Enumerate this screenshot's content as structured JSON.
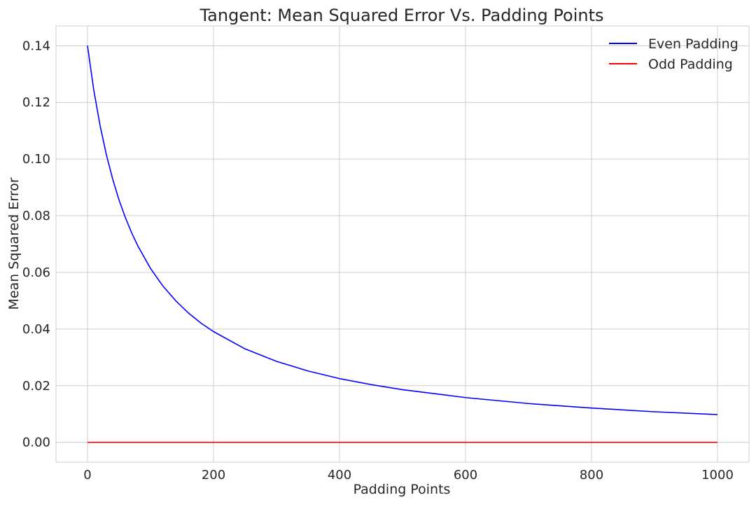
{
  "chart_data": {
    "type": "line",
    "title": "Tangent: Mean Squared Error Vs. Padding Points",
    "xlabel": "Padding Points",
    "ylabel": "Mean Squared Error",
    "xlim": [
      -50,
      1050
    ],
    "ylim": [
      -0.007,
      0.147
    ],
    "x_ticks": [
      0,
      200,
      400,
      600,
      800,
      1000
    ],
    "x_tick_labels": [
      "0",
      "200",
      "400",
      "600",
      "800",
      "1000"
    ],
    "y_ticks": [
      0.0,
      0.02,
      0.04,
      0.06,
      0.08,
      0.1,
      0.12,
      0.14
    ],
    "y_tick_labels": [
      "0.00",
      "0.02",
      "0.04",
      "0.06",
      "0.08",
      "0.10",
      "0.12",
      "0.14"
    ],
    "grid": true,
    "legend_position": "top-right",
    "series": [
      {
        "name": "Even Padding",
        "color": "#0000ff",
        "x": [
          0,
          10,
          20,
          30,
          40,
          50,
          60,
          70,
          80,
          100,
          120,
          140,
          160,
          180,
          200,
          250,
          300,
          350,
          400,
          450,
          500,
          600,
          700,
          800,
          900,
          1000
        ],
        "y": [
          0.14,
          0.1243,
          0.1118,
          0.1015,
          0.0929,
          0.0856,
          0.0794,
          0.074,
          0.0693,
          0.0614,
          0.0551,
          0.05,
          0.0457,
          0.0421,
          0.0391,
          0.033,
          0.0286,
          0.0252,
          0.0225,
          0.0204,
          0.0186,
          0.0158,
          0.0137,
          0.0121,
          0.0108,
          0.0098
        ]
      },
      {
        "name": "Odd Padding",
        "color": "#ff0000",
        "x": [
          0,
          1000
        ],
        "y": [
          0.0,
          0.0
        ]
      }
    ]
  }
}
